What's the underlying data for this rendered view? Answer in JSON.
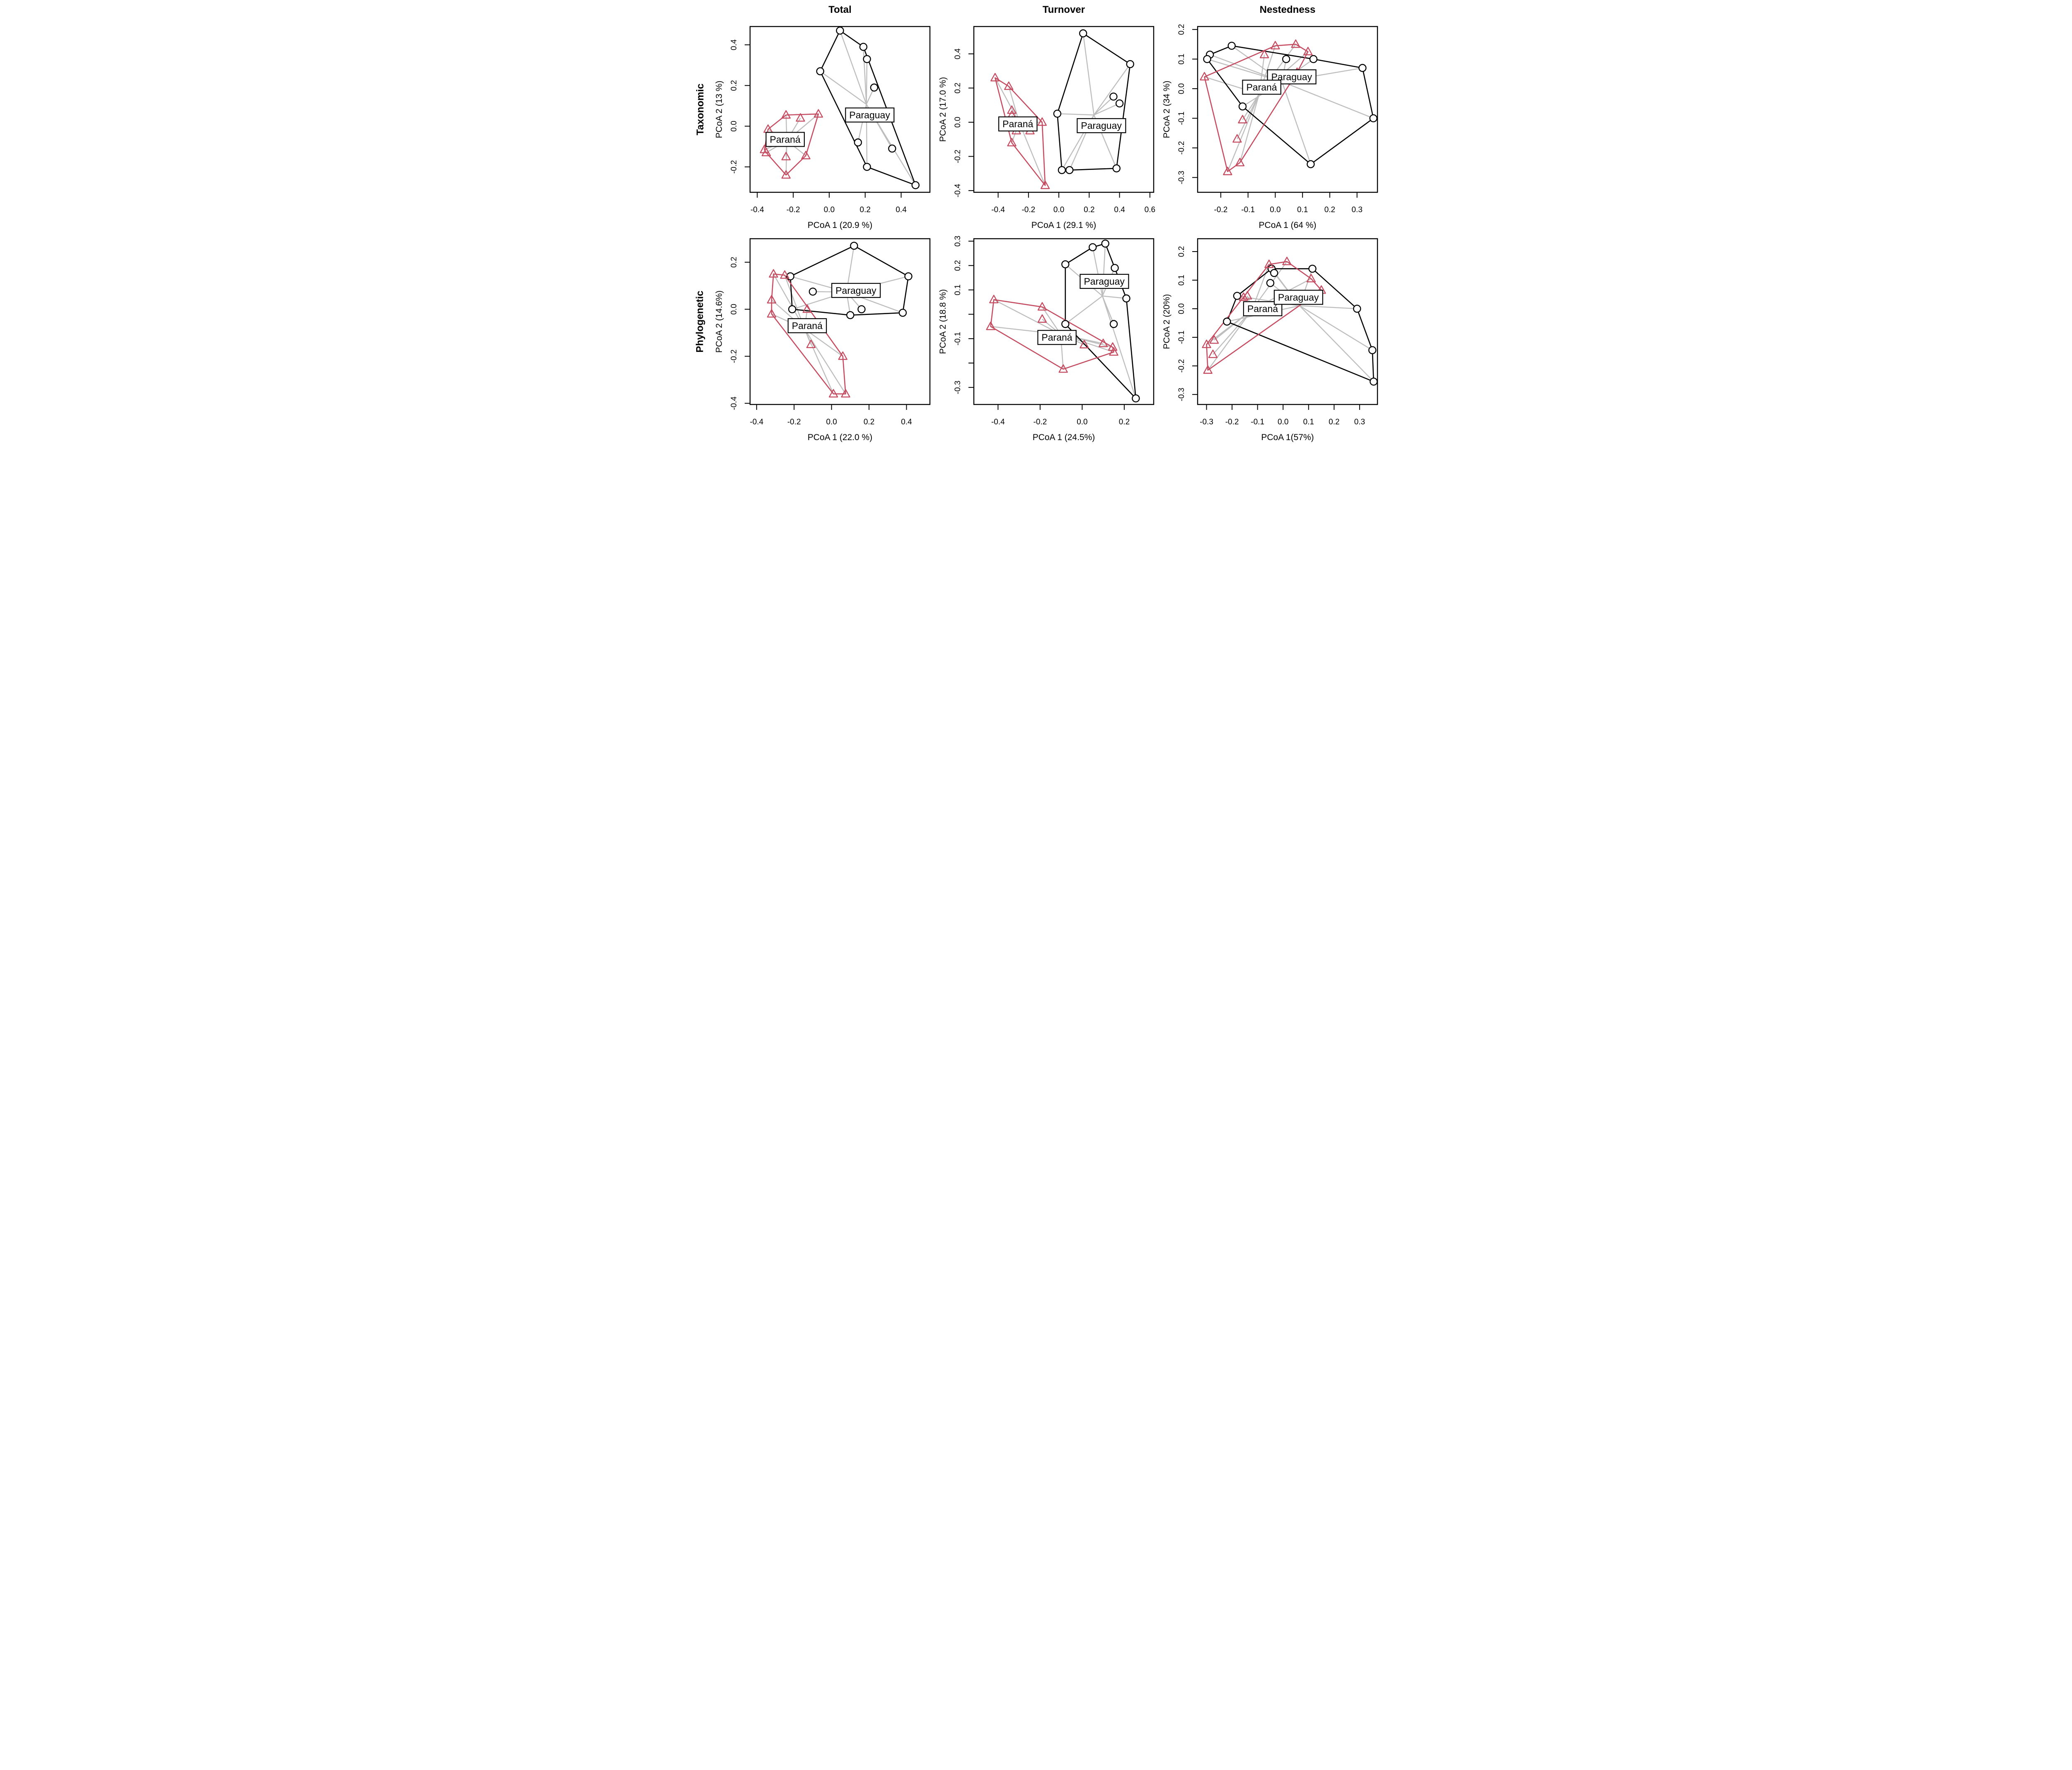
{
  "figure": {
    "rows": [
      {
        "label": "Taxonomic"
      },
      {
        "label": "Phylogenetic"
      }
    ],
    "cols": [
      {
        "label": "Total"
      },
      {
        "label": "Turnover"
      },
      {
        "label": "Nestedness"
      }
    ],
    "groups": {
      "paraguay": {
        "name": "Paraguay",
        "marker": "circle",
        "color": "#000000"
      },
      "parana": {
        "name": "Paraná",
        "marker": "triangle",
        "color": "#C44B60"
      }
    },
    "spider_color": "#BDBDBD",
    "background": "#ffffff"
  },
  "chart_data": [
    {
      "id": "taxonomic-total",
      "type": "scatter",
      "row": "Taxonomic",
      "col": "Total",
      "xlabel": "PCoA 1 (20.9 %)",
      "ylabel": "PCoA 2 (13 %)",
      "xlim": [
        -0.44,
        0.56
      ],
      "ylim": [
        -0.325,
        0.49
      ],
      "xticks": [
        {
          "v": -0.4,
          "l": "-0.4"
        },
        {
          "v": -0.2,
          "l": "-0.2"
        },
        {
          "v": 0.0,
          "l": "0.0"
        },
        {
          "v": 0.2,
          "l": "0.2"
        },
        {
          "v": 0.4,
          "l": "0.4"
        }
      ],
      "yticks": [
        {
          "v": -0.2,
          "l": "-0.2"
        },
        {
          "v": 0.0,
          "l": "0.0"
        },
        {
          "v": 0.2,
          "l": "0.2"
        },
        {
          "v": 0.4,
          "l": "0.4"
        }
      ],
      "series": {
        "paraguay": [
          [
            0.06,
            0.47
          ],
          [
            0.19,
            0.39
          ],
          [
            0.21,
            0.33
          ],
          [
            -0.05,
            0.27
          ],
          [
            0.25,
            0.19
          ],
          [
            0.16,
            -0.08
          ],
          [
            0.35,
            -0.11
          ],
          [
            0.21,
            -0.2
          ],
          [
            0.48,
            -0.29
          ]
        ],
        "parana": [
          [
            -0.24,
            0.055
          ],
          [
            -0.16,
            0.04
          ],
          [
            -0.06,
            0.06
          ],
          [
            -0.34,
            -0.015
          ],
          [
            -0.36,
            -0.115
          ],
          [
            -0.35,
            -0.13
          ],
          [
            -0.24,
            -0.15
          ],
          [
            -0.13,
            -0.145
          ],
          [
            -0.24,
            -0.24
          ]
        ]
      },
      "labels": {
        "paraguay": [
          0.225,
          0.055
        ],
        "parana": [
          -0.245,
          -0.065
        ]
      },
      "label_order": [
        "paraguay",
        "parana"
      ]
    },
    {
      "id": "taxonomic-turnover",
      "type": "scatter",
      "row": "Taxonomic",
      "col": "Turnover",
      "xlabel": "PCoA 1 (29.1 %)",
      "ylabel": "PCoA 2 (17.0 %)",
      "xlim": [
        -0.56,
        0.625
      ],
      "ylim": [
        -0.41,
        0.56
      ],
      "xticks": [
        {
          "v": -0.4,
          "l": "-0.4"
        },
        {
          "v": -0.2,
          "l": "-0.2"
        },
        {
          "v": 0.0,
          "l": "0.0"
        },
        {
          "v": 0.2,
          "l": "0.2"
        },
        {
          "v": 0.4,
          "l": "0.4"
        },
        {
          "v": 0.6,
          "l": "0.6"
        }
      ],
      "yticks": [
        {
          "v": -0.4,
          "l": "-0.4"
        },
        {
          "v": -0.2,
          "l": "-0.2"
        },
        {
          "v": 0.0,
          "l": "0.0"
        },
        {
          "v": 0.2,
          "l": "0.2"
        },
        {
          "v": 0.4,
          "l": "0.4"
        }
      ],
      "series": {
        "paraguay": [
          [
            0.16,
            0.52
          ],
          [
            0.47,
            0.34
          ],
          [
            0.36,
            0.15
          ],
          [
            0.4,
            0.11
          ],
          [
            -0.01,
            0.05
          ],
          [
            0.02,
            -0.28
          ],
          [
            0.07,
            -0.28
          ],
          [
            0.38,
            -0.27
          ]
        ],
        "parana": [
          [
            -0.42,
            0.26
          ],
          [
            -0.33,
            0.21
          ],
          [
            -0.31,
            0.07
          ],
          [
            -0.31,
            0.04
          ],
          [
            -0.11,
            0.0
          ],
          [
            -0.28,
            -0.05
          ],
          [
            -0.19,
            -0.05
          ],
          [
            -0.31,
            -0.12
          ],
          [
            -0.09,
            -0.37
          ]
        ]
      },
      "labels": {
        "paraguay": [
          0.28,
          -0.02
        ],
        "parana": [
          -0.27,
          -0.01
        ]
      },
      "label_order": [
        "parana",
        "paraguay"
      ]
    },
    {
      "id": "taxonomic-nestedness",
      "type": "scatter",
      "row": "Taxonomic",
      "col": "Nestedness",
      "xlabel": "PCoA 1 (64 %)",
      "ylabel": "PCoA 2 (34 %)",
      "xlim": [
        -0.285,
        0.375
      ],
      "ylim": [
        -0.35,
        0.21
      ],
      "xticks": [
        {
          "v": -0.2,
          "l": "-0.2"
        },
        {
          "v": -0.1,
          "l": "-0.1"
        },
        {
          "v": 0.0,
          "l": "0.0"
        },
        {
          "v": 0.1,
          "l": "0.1"
        },
        {
          "v": 0.2,
          "l": "0.2"
        },
        {
          "v": 0.3,
          "l": "0.3"
        }
      ],
      "yticks": [
        {
          "v": -0.3,
          "l": "-0.3"
        },
        {
          "v": -0.2,
          "l": "-0.2"
        },
        {
          "v": -0.1,
          "l": "-0.1"
        },
        {
          "v": 0.0,
          "l": "0.0"
        },
        {
          "v": 0.1,
          "l": "0.1"
        },
        {
          "v": 0.2,
          "l": "0.2"
        }
      ],
      "series": {
        "paraguay": [
          [
            -0.16,
            0.145
          ],
          [
            -0.24,
            0.115
          ],
          [
            -0.25,
            0.1
          ],
          [
            0.04,
            0.1
          ],
          [
            0.14,
            0.1
          ],
          [
            0.32,
            0.07
          ],
          [
            0.36,
            -0.1
          ],
          [
            0.13,
            -0.255
          ],
          [
            -0.12,
            -0.06
          ]
        ],
        "parana": [
          [
            0.0,
            0.145
          ],
          [
            0.075,
            0.15
          ],
          [
            -0.04,
            0.115
          ],
          [
            0.12,
            0.125
          ],
          [
            -0.26,
            0.04
          ],
          [
            0.08,
            0.055
          ],
          [
            -0.12,
            -0.105
          ],
          [
            -0.14,
            -0.17
          ],
          [
            -0.13,
            -0.25
          ],
          [
            -0.175,
            -0.28
          ]
        ]
      },
      "labels": {
        "paraguay": [
          0.06,
          0.04
        ],
        "parana": [
          -0.05,
          0.005
        ]
      },
      "label_order": [
        "paraguay",
        "parana"
      ]
    },
    {
      "id": "phylogenetic-total",
      "type": "scatter",
      "row": "Phylogenetic",
      "col": "Total",
      "xlabel": "PCoA 1 (22.0 %)",
      "ylabel": "PCoA 2 (14.6%)",
      "xlim": [
        -0.435,
        0.525
      ],
      "ylim": [
        -0.405,
        0.3
      ],
      "xticks": [
        {
          "v": -0.4,
          "l": "-0.4"
        },
        {
          "v": -0.2,
          "l": "-0.2"
        },
        {
          "v": 0.0,
          "l": "0.0"
        },
        {
          "v": 0.2,
          "l": "0.2"
        },
        {
          "v": 0.4,
          "l": "0.4"
        }
      ],
      "yticks": [
        {
          "v": -0.4,
          "l": "-0.4"
        },
        {
          "v": -0.2,
          "l": "-0.2"
        },
        {
          "v": 0.0,
          "l": "0.0"
        },
        {
          "v": 0.2,
          "l": "0.2"
        }
      ],
      "series": {
        "paraguay": [
          [
            0.12,
            0.27
          ],
          [
            -0.22,
            0.14
          ],
          [
            0.41,
            0.14
          ],
          [
            -0.1,
            0.075
          ],
          [
            -0.21,
            0.0
          ],
          [
            0.16,
            0.0
          ],
          [
            0.1,
            -0.025
          ],
          [
            0.38,
            -0.015
          ]
        ],
        "parana": [
          [
            -0.31,
            0.15
          ],
          [
            -0.25,
            0.145
          ],
          [
            -0.32,
            0.04
          ],
          [
            -0.32,
            -0.02
          ],
          [
            -0.13,
            0.0
          ],
          [
            -0.11,
            -0.15
          ],
          [
            0.06,
            -0.2
          ],
          [
            0.01,
            -0.36
          ],
          [
            0.075,
            -0.36
          ]
        ]
      },
      "labels": {
        "paraguay": [
          0.13,
          0.08
        ],
        "parana": [
          -0.13,
          -0.07
        ]
      },
      "label_order": [
        "paraguay",
        "parana"
      ]
    },
    {
      "id": "phylogenetic-turnover",
      "type": "scatter",
      "row": "Phylogenetic",
      "col": "Turnover",
      "xlabel": "PCoA 1 (24.5%)",
      "ylabel": "PCoA 2 (18.8 %)",
      "xlim": [
        -0.515,
        0.34
      ],
      "ylim": [
        -0.37,
        0.31
      ],
      "xticks": [
        {
          "v": -0.4,
          "l": "-0.4"
        },
        {
          "v": -0.2,
          "l": "-0.2"
        },
        {
          "v": 0.0,
          "l": "0.0"
        },
        {
          "v": 0.2,
          "l": "0.2"
        }
      ],
      "yticks": [
        {
          "v": -0.3,
          "l": "-0.3"
        },
        {
          "v": -0.2,
          "l": ""
        },
        {
          "v": -0.1,
          "l": "-0.1"
        },
        {
          "v": 0.0,
          "l": ""
        },
        {
          "v": 0.1,
          "l": "0.1"
        },
        {
          "v": 0.2,
          "l": "0.2"
        },
        {
          "v": 0.3,
          "l": "0.3"
        }
      ],
      "series": {
        "paraguay": [
          [
            0.05,
            0.275
          ],
          [
            0.11,
            0.29
          ],
          [
            -0.08,
            0.205
          ],
          [
            0.155,
            0.19
          ],
          [
            0.21,
            0.065
          ],
          [
            0.15,
            -0.04
          ],
          [
            -0.08,
            -0.04
          ],
          [
            0.255,
            -0.345
          ]
        ],
        "parana": [
          [
            -0.42,
            0.06
          ],
          [
            -0.435,
            -0.05
          ],
          [
            -0.19,
            0.03
          ],
          [
            -0.19,
            -0.02
          ],
          [
            0.01,
            -0.125
          ],
          [
            0.1,
            -0.12
          ],
          [
            0.145,
            -0.135
          ],
          [
            0.15,
            -0.155
          ],
          [
            -0.09,
            -0.225
          ]
        ]
      },
      "labels": {
        "paraguay": [
          0.105,
          0.135
        ],
        "parana": [
          -0.12,
          -0.095
        ]
      },
      "label_order": [
        "paraguay",
        "parana"
      ]
    },
    {
      "id": "phylogenetic-nestedness",
      "type": "scatter",
      "row": "Phylogenetic",
      "col": "Nestedness",
      "xlabel": "PCoA 1(57%)",
      "ylabel": "PCoA 2 (20%)",
      "xlim": [
        -0.335,
        0.37
      ],
      "ylim": [
        -0.335,
        0.245
      ],
      "xticks": [
        {
          "v": -0.3,
          "l": "-0.3"
        },
        {
          "v": -0.2,
          "l": "-0.2"
        },
        {
          "v": -0.1,
          "l": "-0.1"
        },
        {
          "v": 0.0,
          "l": "0.0"
        },
        {
          "v": 0.1,
          "l": "0.1"
        },
        {
          "v": 0.2,
          "l": "0.2"
        },
        {
          "v": 0.3,
          "l": "0.3"
        }
      ],
      "yticks": [
        {
          "v": -0.3,
          "l": "-0.3"
        },
        {
          "v": -0.2,
          "l": "-0.2"
        },
        {
          "v": -0.1,
          "l": "-0.1"
        },
        {
          "v": 0.0,
          "l": "0.0"
        },
        {
          "v": 0.1,
          "l": "0.1"
        },
        {
          "v": 0.2,
          "l": "0.2"
        }
      ],
      "series": {
        "paraguay": [
          [
            -0.045,
            0.14
          ],
          [
            -0.035,
            0.125
          ],
          [
            0.115,
            0.14
          ],
          [
            -0.05,
            0.09
          ],
          [
            -0.18,
            0.045
          ],
          [
            -0.22,
            -0.045
          ],
          [
            0.29,
            0.0
          ],
          [
            0.35,
            -0.145
          ],
          [
            0.355,
            -0.255
          ]
        ],
        "parana": [
          [
            -0.055,
            0.155
          ],
          [
            0.015,
            0.165
          ],
          [
            0.11,
            0.105
          ],
          [
            0.15,
            0.065
          ],
          [
            -0.14,
            0.045
          ],
          [
            -0.155,
            0.04
          ],
          [
            -0.27,
            -0.11
          ],
          [
            -0.3,
            -0.125
          ],
          [
            -0.275,
            -0.16
          ],
          [
            -0.295,
            -0.215
          ]
        ]
      },
      "labels": {
        "paraguay": [
          0.06,
          0.04
        ],
        "parana": [
          -0.08,
          0.0
        ]
      },
      "label_order": [
        "parana",
        "paraguay"
      ]
    }
  ]
}
